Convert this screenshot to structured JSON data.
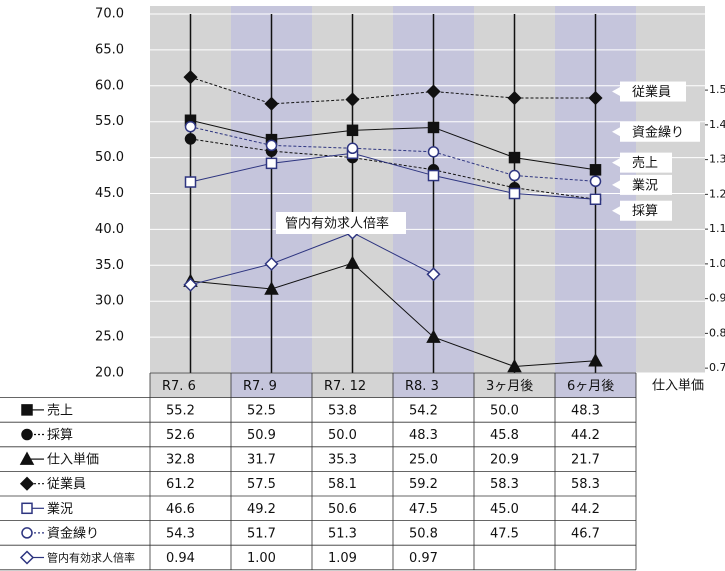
{
  "chart_data": {
    "type": "line",
    "categories": [
      "R7. 6",
      "R7. 9",
      "R7. 12",
      "R8. 3",
      "3ヶ月後",
      "6ヶ月後"
    ],
    "ylim": [
      20,
      70
    ],
    "yticks": [
      {
        "value": 20,
        "label": "20.0"
      },
      {
        "value": 25,
        "label": "25.0"
      },
      {
        "value": 30,
        "label": "30.0"
      },
      {
        "value": 35,
        "label": "35.0"
      },
      {
        "value": 40,
        "label": "40.0"
      },
      {
        "value": 45,
        "label": "45.0"
      },
      {
        "value": 50,
        "label": "50.0"
      },
      {
        "value": 55,
        "label": "55.0"
      },
      {
        "value": 60,
        "label": "60.0"
      },
      {
        "value": 65,
        "label": "65.0"
      },
      {
        "value": 70,
        "label": "70.0"
      }
    ],
    "y2lim": [
      0.686,
      1.719
    ],
    "y2ticks": [
      0.7,
      0.8,
      0.9,
      {
        "value": 1.0,
        "label": "1.0"
      },
      1.1,
      1.2,
      1.3,
      1.4,
      1.5
    ],
    "series": [
      {
        "name": "売上",
        "color": "#111111",
        "marker": "square",
        "filled": true,
        "dashed": false,
        "values": [
          55.2,
          52.5,
          53.8,
          54.2,
          50.0,
          48.3
        ],
        "value_labels": [
          "55.2",
          "52.5",
          "53.8",
          "54.2",
          "50.0",
          "48.3"
        ]
      },
      {
        "name": "採算",
        "color": "#111111",
        "marker": "circle",
        "filled": true,
        "dashed": true,
        "values": [
          52.6,
          50.9,
          50.0,
          48.3,
          45.8,
          44.2
        ],
        "value_labels": [
          "52.6",
          "50.9",
          "50.0",
          "48.3",
          "45.8",
          "44.2"
        ]
      },
      {
        "name": "仕入単価",
        "color": "#111111",
        "marker": "triangle",
        "filled": true,
        "dashed": false,
        "values": [
          32.8,
          31.7,
          35.3,
          25.0,
          20.9,
          21.7
        ],
        "value_labels": [
          "32.8",
          "31.7",
          "35.3",
          "25.0",
          "20.9",
          "21.7"
        ]
      },
      {
        "name": "従業員",
        "color": "#111111",
        "marker": "diamond",
        "filled": true,
        "dashed": true,
        "values": [
          61.2,
          57.5,
          58.1,
          59.2,
          58.3,
          58.3
        ],
        "value_labels": [
          "61.2",
          "57.5",
          "58.1",
          "59.2",
          "58.3",
          "58.3"
        ]
      },
      {
        "name": "業況",
        "color": "#2e3580",
        "marker": "square",
        "filled": false,
        "dashed": false,
        "values": [
          46.6,
          49.2,
          50.6,
          47.5,
          45.0,
          44.2
        ],
        "value_labels": [
          "46.6",
          "49.2",
          "50.6",
          "47.5",
          "45.0",
          "44.2"
        ]
      },
      {
        "name": "資金繰り",
        "color": "#2e3580",
        "marker": "circle",
        "filled": false,
        "dashed": true,
        "values": [
          54.3,
          51.7,
          51.3,
          50.8,
          47.5,
          46.7
        ],
        "value_labels": [
          "54.3",
          "51.7",
          "51.3",
          "50.8",
          "47.5",
          "46.7"
        ]
      },
      {
        "name": "管内有効求人倍率",
        "color": "#2e3580",
        "marker": "diamond",
        "filled": false,
        "dashed": false,
        "axis": "y2",
        "values": [
          0.94,
          1.0,
          1.09,
          0.97,
          null,
          null
        ],
        "value_labels": [
          "0.94",
          "1.00",
          "1.09",
          "0.97",
          null,
          null
        ]
      }
    ],
    "callouts": [
      {
        "series": 3,
        "at": 59.2
      },
      {
        "series": 5,
        "at": 53.6
      },
      {
        "series": 0,
        "at": 49.3
      },
      {
        "series": 4,
        "at": 46.2
      },
      {
        "series": 1,
        "at": 42.6
      }
    ]
  }
}
